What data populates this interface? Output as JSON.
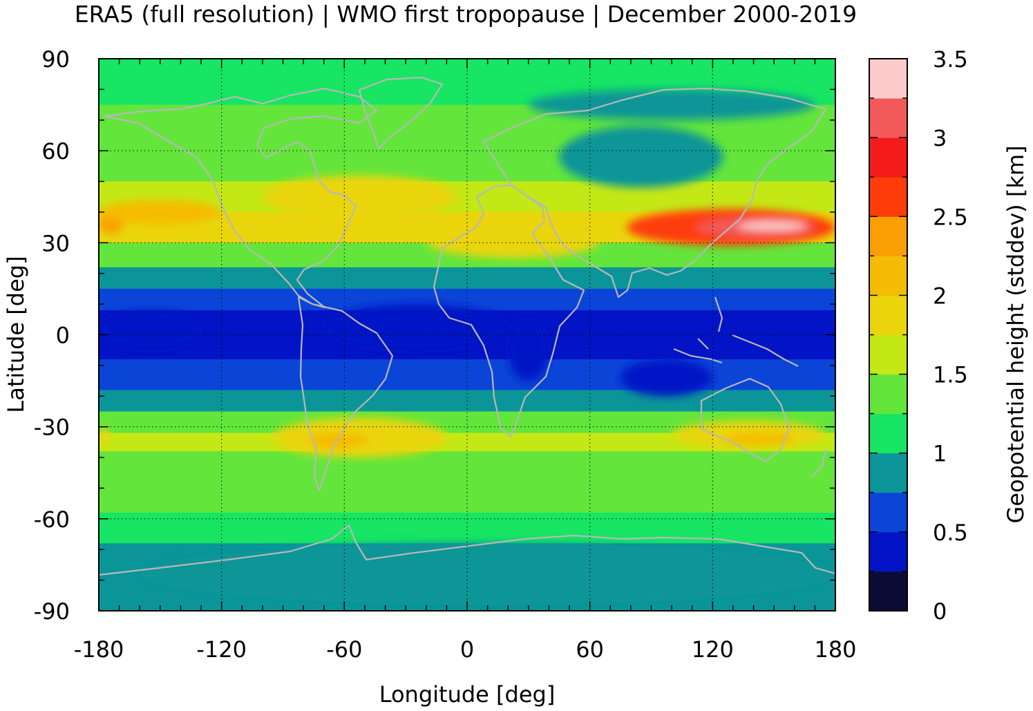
{
  "chart_data": {
    "type": "heatmap",
    "title": "ERA5 (full resolution) | WMO first tropopause | December 2000-2019",
    "xlabel": "Longitude [deg]",
    "ylabel": "Latitude [deg]",
    "colorbar_label": "Geopotential height (stddev) [km]",
    "xlim": [
      -180,
      180
    ],
    "ylim": [
      -90,
      90
    ],
    "x_ticks": [
      -180,
      -120,
      -60,
      0,
      60,
      120,
      180
    ],
    "y_ticks": [
      90,
      60,
      30,
      0,
      -30,
      -60,
      -90
    ],
    "colorbar_range": [
      0,
      3.5
    ],
    "colorbar_ticks": [
      3.5,
      3,
      2.5,
      2,
      1.5,
      1,
      0.5,
      0
    ],
    "grid": true,
    "levels": [
      {
        "lo": 0.0,
        "hi": 0.25,
        "color": "#0b0c33"
      },
      {
        "lo": 0.25,
        "hi": 0.5,
        "color": "#0314c6"
      },
      {
        "lo": 0.5,
        "hi": 0.75,
        "color": "#0a45d8"
      },
      {
        "lo": 0.75,
        "hi": 1.0,
        "color": "#0b9598"
      },
      {
        "lo": 1.0,
        "hi": 1.25,
        "color": "#17e563"
      },
      {
        "lo": 1.25,
        "hi": 1.5,
        "color": "#63e53c"
      },
      {
        "lo": 1.5,
        "hi": 1.75,
        "color": "#c4e815"
      },
      {
        "lo": 1.75,
        "hi": 2.0,
        "color": "#ead50c"
      },
      {
        "lo": 2.0,
        "hi": 2.25,
        "color": "#f5bc05"
      },
      {
        "lo": 2.25,
        "hi": 2.5,
        "color": "#fa9e06"
      },
      {
        "lo": 2.5,
        "hi": 2.75,
        "color": "#fd3d09"
      },
      {
        "lo": 2.75,
        "hi": 3.0,
        "color": "#f41c1b"
      },
      {
        "lo": 3.0,
        "hi": 3.25,
        "color": "#f25a59"
      },
      {
        "lo": 3.25,
        "hi": 3.5,
        "color": "#fdcbcb"
      }
    ],
    "zonal_profile": [
      {
        "lat": 90,
        "value": 1.1
      },
      {
        "lat": 75,
        "value": 1.2
      },
      {
        "lat": 60,
        "value": 1.3
      },
      {
        "lat": 50,
        "value": 1.5
      },
      {
        "lat": 40,
        "value": 1.8
      },
      {
        "lat": 35,
        "value": 2.0
      },
      {
        "lat": 30,
        "value": 1.6
      },
      {
        "lat": 22,
        "value": 1.1
      },
      {
        "lat": 15,
        "value": 0.6
      },
      {
        "lat": 8,
        "value": 0.4
      },
      {
        "lat": 0,
        "value": 0.35
      },
      {
        "lat": -8,
        "value": 0.45
      },
      {
        "lat": -18,
        "value": 0.6
      },
      {
        "lat": -25,
        "value": 0.9
      },
      {
        "lat": -32,
        "value": 1.6
      },
      {
        "lat": -38,
        "value": 1.5
      },
      {
        "lat": -48,
        "value": 1.3
      },
      {
        "lat": -58,
        "value": 1.2
      },
      {
        "lat": -68,
        "value": 0.95
      },
      {
        "lat": -80,
        "value": 0.85
      },
      {
        "lat": -90,
        "value": 0.85
      }
    ],
    "regional_features": [
      {
        "lon": [
          78,
          180
        ],
        "lat": [
          29,
          41
        ],
        "value": 2.7
      },
      {
        "lon": [
          112,
          170
        ],
        "lat": [
          32,
          38
        ],
        "value": 3.1
      },
      {
        "lon": [
          132,
          166
        ],
        "lat": [
          34,
          37
        ],
        "value": 3.3
      },
      {
        "lon": [
          -180,
          -168
        ],
        "lat": [
          33,
          40
        ],
        "value": 2.4
      },
      {
        "lon": [
          -100,
          -5
        ],
        "lat": [
          38,
          52
        ],
        "value": 1.75
      },
      {
        "lon": [
          -180,
          -120
        ],
        "lat": [
          36,
          44
        ],
        "value": 2.0
      },
      {
        "lon": [
          -20,
          65
        ],
        "lat": [
          25,
          36
        ],
        "value": 1.9
      },
      {
        "lon": [
          30,
          170
        ],
        "lat": [
          70,
          80
        ],
        "value": 0.9
      },
      {
        "lon": [
          45,
          125
        ],
        "lat": [
          48,
          68
        ],
        "value": 0.9
      },
      {
        "lon": [
          -95,
          -10
        ],
        "lat": [
          -40,
          -27
        ],
        "value": 1.8
      },
      {
        "lon": [
          -78,
          -48
        ],
        "lat": [
          -37,
          -32
        ],
        "value": 2.1
      },
      {
        "lon": [
          100,
          175
        ],
        "lat": [
          -37,
          -28
        ],
        "value": 1.8
      },
      {
        "lon": [
          125,
          160
        ],
        "lat": [
          -36,
          -32
        ],
        "value": 2.1
      },
      {
        "lon": [
          -180,
          -175
        ],
        "lat": [
          -36,
          -30
        ],
        "value": 1.8
      },
      {
        "lon": [
          -160,
          180
        ],
        "lat": [
          -88,
          -68
        ],
        "value": 0.85
      },
      {
        "lon": [
          -70,
          20
        ],
        "lat": [
          -5,
          10
        ],
        "value": 0.3
      },
      {
        "lon": [
          -180,
          -130
        ],
        "lat": [
          -5,
          8
        ],
        "value": 0.3
      },
      {
        "lon": [
          20,
          40
        ],
        "lat": [
          -15,
          5
        ],
        "value": 0.35
      },
      {
        "lon": [
          75,
          120
        ],
        "lat": [
          -20,
          -8
        ],
        "value": 0.3
      }
    ],
    "overlay": "coastlines"
  }
}
